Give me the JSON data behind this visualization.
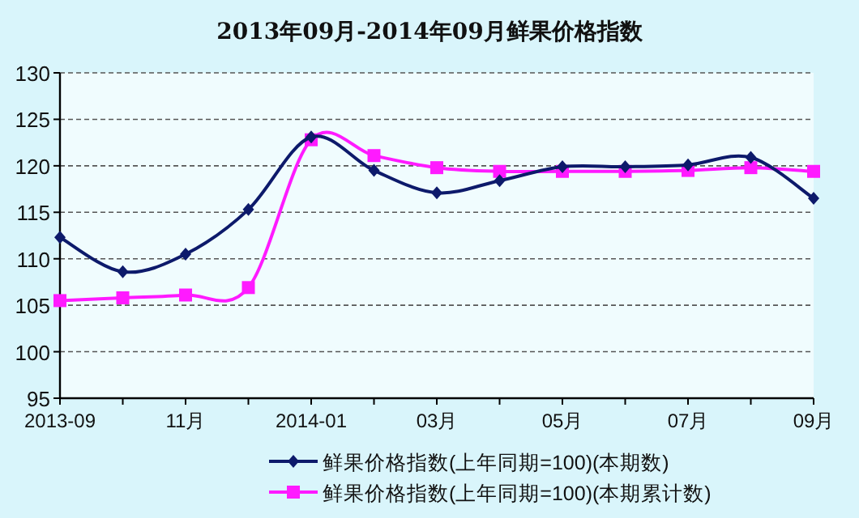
{
  "chart_data": {
    "type": "line",
    "title": "2013年09月-2014年09月鲜果价格指数",
    "categories": [
      "2013-09",
      null,
      "11月",
      null,
      "2014-01",
      null,
      "03月",
      null,
      "05月",
      null,
      "07月",
      null,
      "09月"
    ],
    "series": [
      {
        "name": "鲜果价格指数(上年同期=100)(本期数)",
        "color": "#0d1a6b",
        "marker": "diamond",
        "values": [
          112.3,
          108.6,
          110.5,
          115.3,
          123.1,
          119.5,
          117.1,
          118.4,
          119.9,
          119.9,
          120.1,
          120.9,
          116.5
        ]
      },
      {
        "name": "鲜果价格指数(上年同期=100)(本期累计数)",
        "color": "#ff1aff",
        "marker": "square",
        "values": [
          105.5,
          105.8,
          106.1,
          106.9,
          122.8,
          121.1,
          119.8,
          119.4,
          119.4,
          119.4,
          119.5,
          119.8,
          119.4
        ]
      }
    ],
    "ylim": [
      95,
      130
    ],
    "yticks": [
      95,
      100,
      105,
      110,
      115,
      120,
      125,
      130
    ],
    "grid": "y",
    "legend": "bottom"
  }
}
